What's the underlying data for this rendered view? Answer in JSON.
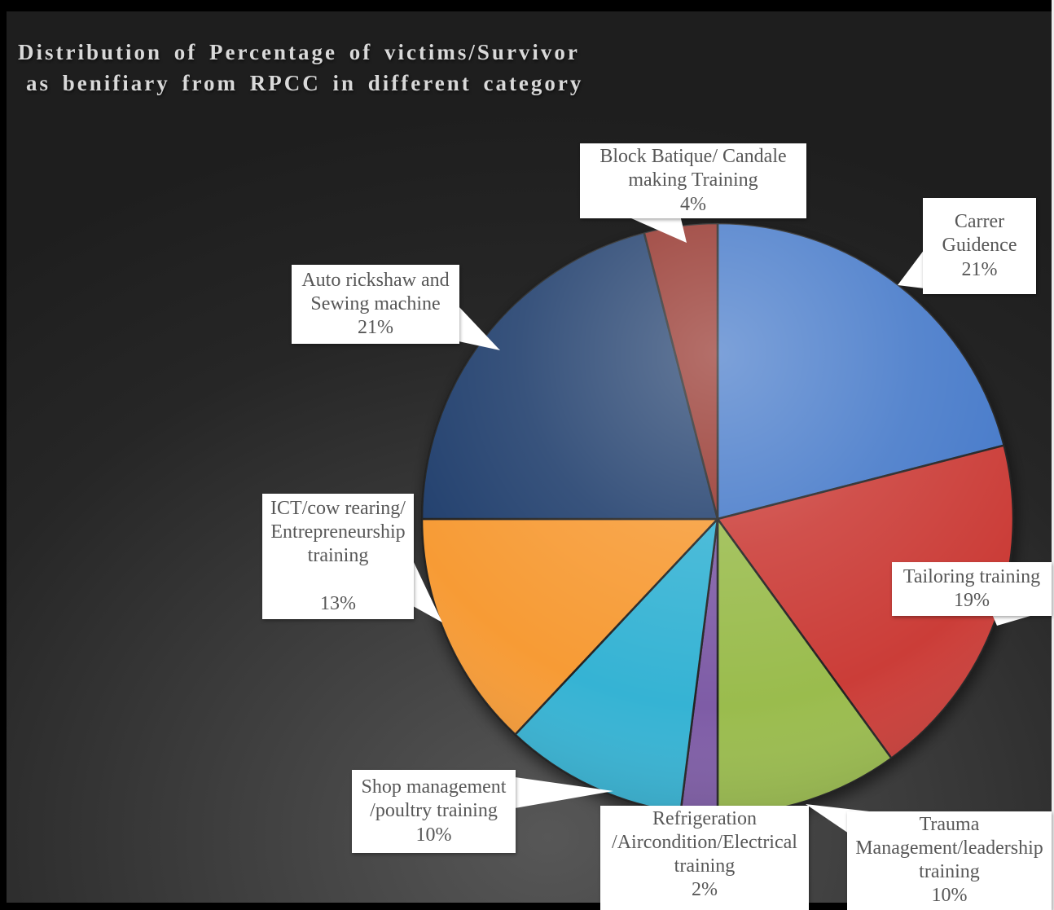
{
  "title": {
    "line1": "Distribution of Percentage of victims/Survivor",
    "line2": "as benifiary from RPCC in different category"
  },
  "chart_data": {
    "type": "pie",
    "title": "Distribution of Percentage of victims/Survivor as benifiary from RPCC in different category",
    "start_angle_deg": 0,
    "direction": "clockwise",
    "units": "percent",
    "legend_position": "none",
    "labels_style": "external white callout boxes with leader triangles",
    "slices": [
      {
        "label": "Carrer Guidence",
        "value": 21,
        "color": "#4579C9"
      },
      {
        "label": "Tailoring training",
        "value": 19,
        "color": "#CB3C38"
      },
      {
        "label": "Trauma Management/leadership training",
        "value": 10,
        "color": "#9ABC4D"
      },
      {
        "label": "Refrigeration /Aircondition/Electrical training",
        "value": 2,
        "color": "#7E5CA6"
      },
      {
        "label": "Shop management /poultry training",
        "value": 10,
        "color": "#36B3D4"
      },
      {
        "label": "ICT/cow rearing/ Entrepreneurship training",
        "value": 13,
        "color": "#F79B34"
      },
      {
        "label": "Auto rickshaw and Sewing machine",
        "value": 21,
        "color": "#20406E"
      },
      {
        "label": "Block Batique/ Candale making Training",
        "value": 4,
        "color": "#94302C"
      }
    ]
  },
  "callouts": [
    {
      "id": "block-batique",
      "text": "Block Batique/ Candale\nmaking Training\n4%"
    },
    {
      "id": "carrer-guidence",
      "text": "Carrer\nGuidence\n21%"
    },
    {
      "id": "tailoring-training",
      "text": "Tailoring training\n19%"
    },
    {
      "id": "trauma-management",
      "text": "Trauma\nManagement/leadership\ntraining\n10%"
    },
    {
      "id": "refrigeration",
      "text": "Refrigeration\n/Aircondition/Electrical\ntraining\n2%"
    },
    {
      "id": "shop-management",
      "text": "Shop management\n/poultry training\n10%"
    },
    {
      "id": "ict-cow-rearing",
      "text": "ICT/cow rearing/\nEntrepreneurship\ntraining\n\n13%"
    },
    {
      "id": "auto-rickshaw",
      "text": "Auto rickshaw and\nSewing machine\n21%"
    }
  ],
  "colors": {
    "background_center": "#575757",
    "background_edge": "#1e1e1e",
    "frame": "#000000",
    "title_text": "#d9d9d9",
    "callout_bg": "#ffffff",
    "callout_text": "#575757"
  }
}
